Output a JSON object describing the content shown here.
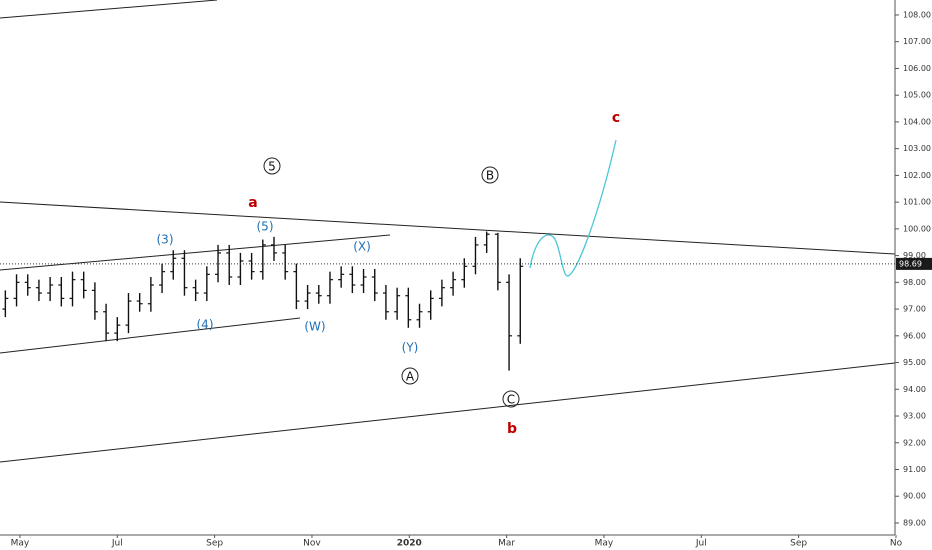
{
  "chart_data": {
    "type": "ohlc",
    "color": "#111111",
    "x": [
      -0.3,
      -0.07,
      0.16,
      0.39,
      0.62,
      0.85,
      1.08,
      1.31,
      1.54,
      1.77,
      2.0,
      2.23,
      2.46,
      2.69,
      2.92,
      3.15,
      3.38,
      3.61,
      3.84,
      4.07,
      4.3,
      4.53,
      4.76,
      4.99,
      5.22,
      5.45,
      5.68,
      5.91,
      6.14,
      6.37,
      6.6,
      6.83,
      7.06,
      7.29,
      7.52,
      7.75,
      7.98,
      8.21,
      8.44,
      8.67,
      8.9,
      9.13,
      9.36,
      9.59,
      9.82,
      10.05,
      10.28
    ],
    "open": [
      97.0,
      97.4,
      98.0,
      97.8,
      97.6,
      97.9,
      97.4,
      98.1,
      97.7,
      96.9,
      96.1,
      96.4,
      97.3,
      97.2,
      97.9,
      98.4,
      98.9,
      97.8,
      97.6,
      98.3,
      99.1,
      98.2,
      98.8,
      98.4,
      99.4,
      99.1,
      98.4,
      97.3,
      97.6,
      97.5,
      98.1,
      98.3,
      97.9,
      98.2,
      97.6,
      96.9,
      97.5,
      96.6,
      96.9,
      97.4,
      97.8,
      98.1,
      98.6,
      99.4,
      99.8,
      98.0,
      96.0
    ],
    "high": [
      97.7,
      98.3,
      98.3,
      98.1,
      98.2,
      98.2,
      98.4,
      98.4,
      98.0,
      97.2,
      96.7,
      97.6,
      97.6,
      98.2,
      98.7,
      99.2,
      99.2,
      98.1,
      98.6,
      99.4,
      99.4,
      99.1,
      99.1,
      99.6,
      99.7,
      99.4,
      98.7,
      97.9,
      97.9,
      98.4,
      98.6,
      98.6,
      98.5,
      98.5,
      97.9,
      97.8,
      97.8,
      97.2,
      97.7,
      98.1,
      98.4,
      98.9,
      99.7,
      99.9,
      99.85,
      98.3,
      98.9
    ],
    "low": [
      96.7,
      97.1,
      97.5,
      97.3,
      97.3,
      97.1,
      97.1,
      97.4,
      96.6,
      95.8,
      95.8,
      96.1,
      96.9,
      96.9,
      97.6,
      98.1,
      97.5,
      97.3,
      97.3,
      98.0,
      97.9,
      97.9,
      98.1,
      98.1,
      98.8,
      98.1,
      97.0,
      97.0,
      97.2,
      97.2,
      97.8,
      97.6,
      97.6,
      97.3,
      96.6,
      96.6,
      96.3,
      96.3,
      96.6,
      97.1,
      97.5,
      97.8,
      98.3,
      99.1,
      97.7,
      94.7,
      95.7
    ],
    "close": [
      97.4,
      98.0,
      97.8,
      97.6,
      97.9,
      97.4,
      98.1,
      97.7,
      96.9,
      96.1,
      96.4,
      97.3,
      97.2,
      97.9,
      98.4,
      98.9,
      97.8,
      97.6,
      98.3,
      99.1,
      98.2,
      98.8,
      98.4,
      99.4,
      99.1,
      98.4,
      97.3,
      97.6,
      97.5,
      98.1,
      98.3,
      97.9,
      98.2,
      97.6,
      96.9,
      97.5,
      96.6,
      96.9,
      97.4,
      97.8,
      98.1,
      98.6,
      99.4,
      99.8,
      98.0,
      96.0,
      98.6
    ],
    "last_price": 98.69,
    "xlim": [
      -0.41,
      17.98
    ],
    "xticks": [
      {
        "value": 0,
        "label": "May"
      },
      {
        "value": 2,
        "label": "Jul"
      },
      {
        "value": 4,
        "label": "Sep"
      },
      {
        "value": 6,
        "label": "Nov"
      },
      {
        "value": 8,
        "label": "2020"
      },
      {
        "value": 10,
        "label": "Mar"
      },
      {
        "value": 12,
        "label": "May"
      },
      {
        "value": 14,
        "label": "Jul"
      },
      {
        "value": 16,
        "label": "Sep"
      },
      {
        "value": 18,
        "label": "No"
      }
    ],
    "ylim": [
      88.55,
      108.56
    ],
    "yticks": [
      {
        "value": 89,
        "label": "89.00"
      },
      {
        "value": 90,
        "label": "90.00"
      },
      {
        "value": 91,
        "label": "91.00"
      },
      {
        "value": 92,
        "label": "92.00"
      },
      {
        "value": 93,
        "label": "93.00"
      },
      {
        "value": 94,
        "label": "94.00"
      },
      {
        "value": 95,
        "label": "95.00"
      },
      {
        "value": 96,
        "label": "96.00"
      },
      {
        "value": 97,
        "label": "97.00"
      },
      {
        "value": 98,
        "label": "98.00"
      },
      {
        "value": 99,
        "label": "99.00"
      },
      {
        "value": 100,
        "label": "100.00"
      },
      {
        "value": 101,
        "label": "101.00"
      },
      {
        "value": 102,
        "label": "102.00"
      },
      {
        "value": 103,
        "label": "103.00"
      },
      {
        "value": 104,
        "label": "104.00"
      },
      {
        "value": 105,
        "label": "105.00"
      },
      {
        "value": 106,
        "label": "106.00"
      },
      {
        "value": 107,
        "label": "107.00"
      },
      {
        "value": 108,
        "label": "108.00"
      }
    ],
    "annotations": [
      "(3)",
      "(5)",
      "(4)",
      "(X)",
      "(W)",
      "(Y)",
      "a",
      "b",
      "c",
      "5",
      "B",
      "A",
      "C"
    ]
  }
}
